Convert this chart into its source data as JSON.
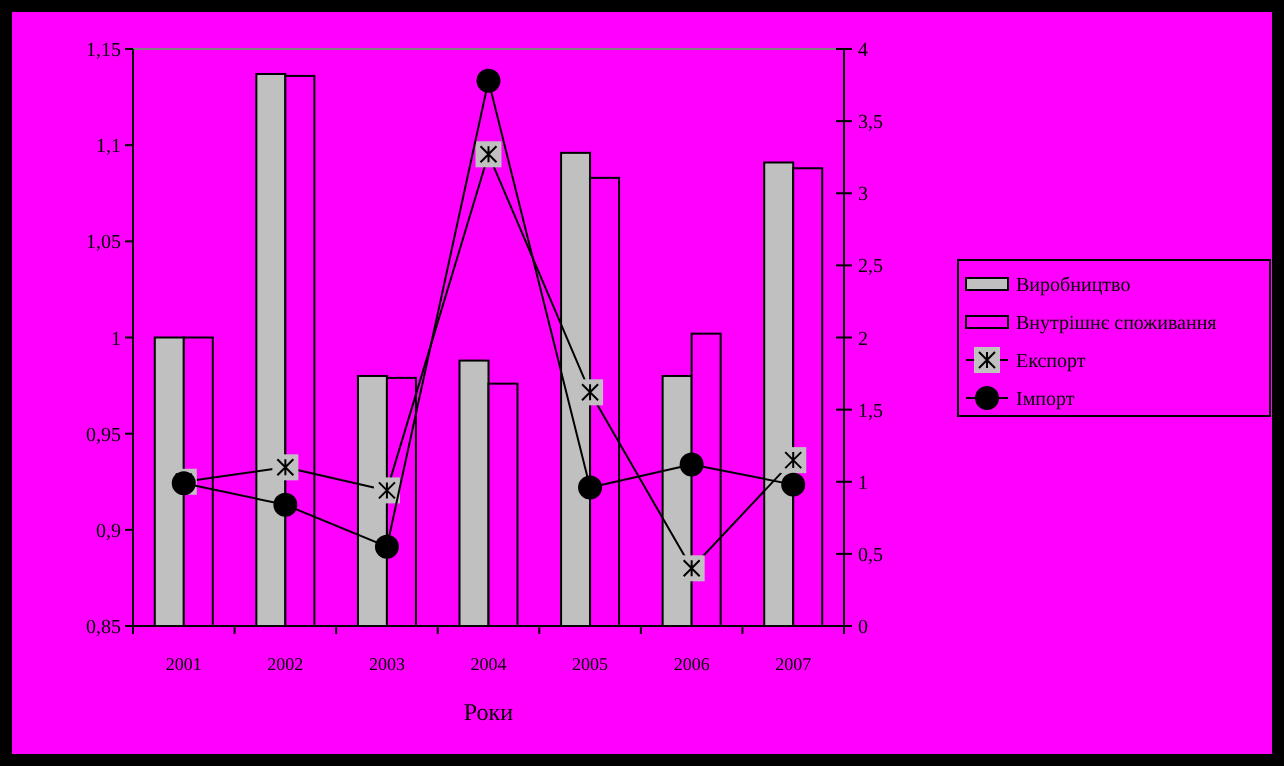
{
  "chart_data": {
    "type": "bar",
    "xlabel": "Роки",
    "categories": [
      "2001",
      "2002",
      "2003",
      "2004",
      "2005",
      "2006",
      "2007"
    ],
    "series": [
      {
        "name": "Виробництво",
        "color": "#c0c0c0",
        "values": [
          1.0,
          1.137,
          0.98,
          0.988,
          1.096,
          0.98,
          1.091
        ]
      },
      {
        "name": "Внутрішнє споживання",
        "color": "#ff00ff",
        "values": [
          1.0,
          1.136,
          0.979,
          0.976,
          1.083,
          1.002,
          1.088
        ]
      },
      {
        "name": "Експорт",
        "type": "line",
        "axis": "y2",
        "color": "#000000",
        "marker": "cross",
        "values": [
          1.0,
          1.1,
          0.94,
          3.27,
          1.62,
          0.4,
          1.15
        ]
      },
      {
        "name": "Імпорт",
        "type": "line",
        "axis": "y2",
        "color": "#000000",
        "marker": "circle",
        "values": [
          0.99,
          0.84,
          0.55,
          3.78,
          0.96,
          1.12,
          0.98
        ]
      }
    ],
    "ylim": [
      0.85,
      1.15
    ],
    "yticks": [
      {
        "value": 0.85,
        "label": "0,85"
      },
      {
        "value": 0.9,
        "label": "0,9"
      },
      {
        "value": 0.95,
        "label": "0,95"
      },
      {
        "value": 1,
        "label": "1"
      },
      {
        "value": 1.05,
        "label": "1,05"
      },
      {
        "value": 1.1,
        "label": "1,1"
      },
      {
        "value": 1.15,
        "label": "1,15"
      }
    ],
    "y2lim": [
      0,
      4
    ],
    "y2ticks": [
      0,
      {
        "value": 0.5,
        "label": "0,5"
      },
      1,
      {
        "value": 1.5,
        "label": "1,5"
      },
      2,
      {
        "value": 2.5,
        "label": "2,5"
      },
      3,
      {
        "value": 3.5,
        "label": "3,5"
      },
      4
    ],
    "grid": false,
    "legend": "right"
  }
}
